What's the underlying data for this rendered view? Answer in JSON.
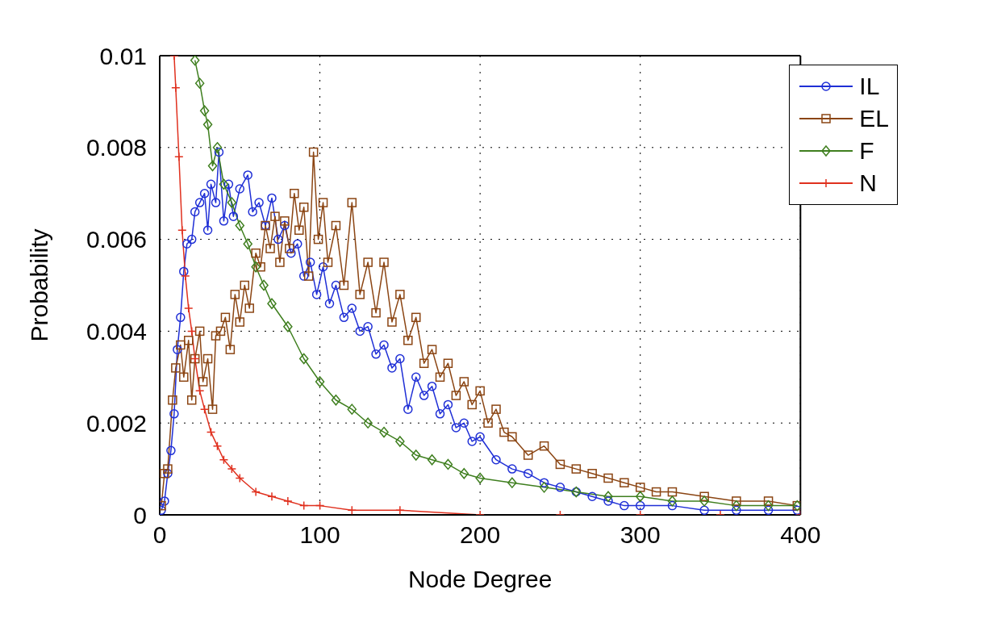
{
  "chart_data": {
    "type": "line",
    "xlabel": "Node Degree",
    "ylabel": "Probability",
    "xlim": [
      0,
      400
    ],
    "xticks": [
      0,
      100,
      200,
      300,
      400
    ],
    "ylim": [
      0,
      0.01
    ],
    "yticks": [
      0,
      0.002,
      0.004,
      0.006,
      0.008,
      0.01
    ],
    "grid": true,
    "legend": "top right",
    "line_style": "solid",
    "series": [
      {
        "name": "IL",
        "color": "#1f2fd6",
        "marker": "circle",
        "x": [
          1,
          3,
          5,
          7,
          9,
          11,
          13,
          15,
          17,
          20,
          22,
          25,
          28,
          30,
          32,
          35,
          37,
          40,
          43,
          46,
          50,
          55,
          58,
          62,
          66,
          70,
          74,
          78,
          82,
          86,
          90,
          94,
          98,
          102,
          106,
          110,
          115,
          120,
          125,
          130,
          135,
          140,
          145,
          150,
          155,
          160,
          165,
          170,
          175,
          180,
          185,
          190,
          195,
          200,
          210,
          220,
          230,
          240,
          250,
          260,
          270,
          280,
          290,
          300,
          320,
          340,
          360,
          380,
          398
        ],
        "values": [
          0.0001,
          0.0003,
          0.0009,
          0.0014,
          0.0022,
          0.0036,
          0.0043,
          0.0053,
          0.0059,
          0.006,
          0.0066,
          0.0068,
          0.007,
          0.0062,
          0.0072,
          0.0068,
          0.0079,
          0.0064,
          0.0072,
          0.0065,
          0.0071,
          0.0074,
          0.0066,
          0.0068,
          0.0063,
          0.0069,
          0.006,
          0.0063,
          0.0057,
          0.0059,
          0.0052,
          0.0055,
          0.0048,
          0.0054,
          0.0046,
          0.005,
          0.0043,
          0.0045,
          0.004,
          0.0041,
          0.0035,
          0.0037,
          0.0032,
          0.0034,
          0.0023,
          0.003,
          0.0026,
          0.0028,
          0.0022,
          0.0024,
          0.0019,
          0.002,
          0.0016,
          0.0017,
          0.0012,
          0.001,
          0.0009,
          0.0007,
          0.0006,
          0.0005,
          0.0004,
          0.0003,
          0.0002,
          0.0002,
          0.0002,
          0.0001,
          0.0001,
          0.0001,
          0.0001
        ]
      },
      {
        "name": "EL",
        "color": "#8b4513",
        "marker": "square",
        "x": [
          1,
          3,
          5,
          8,
          10,
          13,
          15,
          18,
          20,
          22,
          25,
          27,
          30,
          33,
          35,
          38,
          41,
          44,
          47,
          50,
          53,
          56,
          60,
          63,
          66,
          69,
          72,
          75,
          78,
          81,
          84,
          87,
          90,
          93,
          96,
          99,
          102,
          105,
          110,
          115,
          120,
          125,
          130,
          135,
          140,
          145,
          150,
          155,
          160,
          165,
          170,
          175,
          180,
          185,
          190,
          195,
          200,
          205,
          210,
          215,
          220,
          230,
          240,
          250,
          260,
          270,
          280,
          290,
          300,
          310,
          320,
          340,
          360,
          380,
          398
        ],
        "values": [
          0.0002,
          0.0009,
          0.001,
          0.0025,
          0.0032,
          0.0037,
          0.003,
          0.0038,
          0.0025,
          0.0034,
          0.004,
          0.0029,
          0.0034,
          0.0023,
          0.0039,
          0.004,
          0.0043,
          0.0036,
          0.0048,
          0.0042,
          0.005,
          0.0045,
          0.0057,
          0.0054,
          0.0063,
          0.0058,
          0.0065,
          0.0055,
          0.0064,
          0.0058,
          0.007,
          0.0062,
          0.0067,
          0.0052,
          0.0079,
          0.006,
          0.0068,
          0.0055,
          0.0063,
          0.005,
          0.0068,
          0.0048,
          0.0055,
          0.0044,
          0.0055,
          0.0042,
          0.0048,
          0.0038,
          0.0043,
          0.0033,
          0.0036,
          0.003,
          0.0033,
          0.0026,
          0.0029,
          0.0024,
          0.0027,
          0.002,
          0.0023,
          0.0018,
          0.0017,
          0.0013,
          0.0015,
          0.0011,
          0.001,
          0.0009,
          0.0008,
          0.0007,
          0.0006,
          0.0005,
          0.0005,
          0.0004,
          0.0003,
          0.0003,
          0.0002
        ]
      },
      {
        "name": "F",
        "color": "#3f7f1f",
        "marker": "diamond",
        "x": [
          22,
          25,
          28,
          30,
          33,
          36,
          40,
          45,
          50,
          55,
          60,
          65,
          70,
          80,
          90,
          100,
          110,
          120,
          130,
          140,
          150,
          160,
          170,
          180,
          190,
          200,
          220,
          240,
          260,
          280,
          300,
          320,
          340,
          360,
          380,
          398
        ],
        "values": [
          0.0099,
          0.0094,
          0.0088,
          0.0085,
          0.0076,
          0.008,
          0.0072,
          0.0068,
          0.0063,
          0.0059,
          0.0054,
          0.005,
          0.0046,
          0.0041,
          0.0034,
          0.0029,
          0.0025,
          0.0023,
          0.002,
          0.0018,
          0.0016,
          0.0013,
          0.0012,
          0.0011,
          0.0009,
          0.0008,
          0.0007,
          0.0006,
          0.0005,
          0.0004,
          0.0004,
          0.0003,
          0.0003,
          0.0002,
          0.0002,
          0.0002
        ]
      },
      {
        "name": "N",
        "color": "#e0301e",
        "marker": "cross",
        "x": [
          9,
          10,
          12,
          14,
          16,
          18,
          20,
          22,
          25,
          28,
          32,
          36,
          40,
          45,
          50,
          60,
          70,
          80,
          90,
          100,
          120,
          150,
          200,
          250,
          300,
          350,
          400
        ],
        "values": [
          0.01,
          0.0093,
          0.0078,
          0.0062,
          0.0052,
          0.0045,
          0.004,
          0.0034,
          0.0027,
          0.0023,
          0.0018,
          0.0015,
          0.0012,
          0.001,
          0.0008,
          0.0005,
          0.0004,
          0.0003,
          0.0002,
          0.0002,
          0.0001,
          0.0001,
          0,
          0,
          0,
          0,
          0
        ]
      }
    ]
  }
}
